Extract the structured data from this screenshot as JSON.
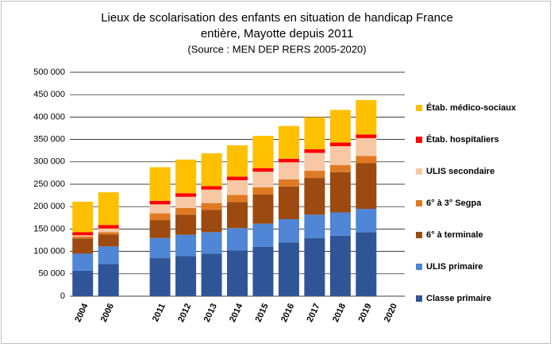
{
  "chart_data": {
    "type": "stacked_bar",
    "title": [
      "Lieux de scolarisation des enfants en situation de handicap France",
      "entière, Mayotte depuis 2011"
    ],
    "subtitle": "(Source : MEN DEP RERS 2005-2020)",
    "categories": [
      "2004",
      "2006",
      null,
      "2011",
      "2012",
      "2013",
      "2014",
      "2015",
      "2016",
      "2017",
      "2018",
      "2019",
      "2020"
    ],
    "series": [
      {
        "name": "Classe primaire",
        "color": "#2f5597",
        "values": [
          57000,
          72000,
          null,
          85000,
          90000,
          95000,
          102000,
          110000,
          120000,
          130000,
          135000,
          143000,
          null
        ]
      },
      {
        "name": "ULIS primaire",
        "color": "#4f86d6",
        "values": [
          38000,
          39000,
          null,
          45000,
          47000,
          48000,
          50000,
          52000,
          52000,
          52000,
          52000,
          52000,
          null
        ]
      },
      {
        "name": "6° à terminale",
        "color": "#9c4a0f",
        "values": [
          34000,
          27000,
          null,
          40000,
          45000,
          50000,
          58000,
          65000,
          73000,
          82000,
          90000,
          102000,
          null
        ]
      },
      {
        "name": "6° à 3° Segpa",
        "color": "#e07a22",
        "values": [
          4000,
          5000,
          null,
          15000,
          15000,
          15000,
          16000,
          16000,
          16000,
          16000,
          16000,
          16000,
          null
        ]
      },
      {
        "name": "ULIS secondaire",
        "color": "#f8c8a4",
        "values": [
          3000,
          8000,
          null,
          20000,
          25000,
          30000,
          33000,
          35000,
          38000,
          40000,
          42000,
          40000,
          null
        ]
      },
      {
        "name": "Étab. hospitaliers",
        "color": "#ff0000",
        "values": [
          7000,
          8000,
          null,
          8000,
          8000,
          8000,
          8000,
          8000,
          8000,
          8000,
          8000,
          8000,
          null
        ]
      },
      {
        "name": "Étab. médico-sociaux",
        "color": "#ffc000",
        "values": [
          68000,
          73000,
          null,
          75000,
          75000,
          73000,
          70000,
          72000,
          73000,
          72000,
          73000,
          77000,
          null
        ]
      }
    ],
    "ylim": [
      0,
      500000
    ],
    "yticks": [
      0,
      {
        "value": 50000,
        "label": "50 000"
      },
      {
        "value": 100000,
        "label": "100 000"
      },
      {
        "value": 150000,
        "label": "150 000"
      },
      {
        "value": 200000,
        "label": "200 000"
      },
      {
        "value": 250000,
        "label": "250 000"
      },
      {
        "value": 300000,
        "label": "300 000"
      },
      {
        "value": 350000,
        "label": "350 000"
      },
      {
        "value": 400000,
        "label": "400 000"
      },
      {
        "value": 450000,
        "label": "450 000"
      },
      {
        "value": 500000,
        "label": "500 000"
      }
    ],
    "grid": true,
    "legend": "right"
  }
}
